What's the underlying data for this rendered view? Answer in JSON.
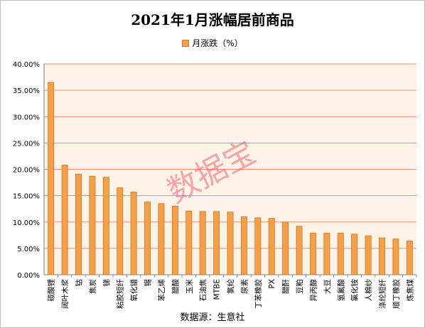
{
  "chart_data": {
    "type": "bar",
    "title": "2021年1月涨幅居前商品",
    "legend": "月涨跌（%）",
    "source": "数据源：生意社",
    "watermark": "数据宝",
    "colors": {
      "bar": "#f4a04a",
      "bar_stroke": "#c9782c",
      "plot_bg": "#fef3e6",
      "grid": "#e0704c"
    },
    "ylim": [
      0,
      40
    ],
    "ytick_labels": [
      "0.00%",
      "5.00%",
      "10.00%",
      "15.00%",
      "20.00%",
      "25.00%",
      "30.00%",
      "35.00%",
      "40.00%"
    ],
    "categories": [
      "碳酸锂",
      "阔叶木浆",
      "钴",
      "焦炭",
      "锑",
      "粘胶短纤",
      "氧化镨",
      "锡",
      "苯乙烯",
      "醋酸",
      "玉米",
      "石油焦",
      "MTBE",
      "氯纶",
      "尿素",
      "丁苯橡胶",
      "PX",
      "醋酐",
      "豆粕",
      "异丙醇",
      "大豆",
      "氢氟酸",
      "氯化铵",
      "人棉纱",
      "涤纶短纤",
      "顺丁橡胶",
      "炼焦煤"
    ],
    "values": [
      36.5,
      20.8,
      19.1,
      18.7,
      18.5,
      16.5,
      15.7,
      13.8,
      13.5,
      13.0,
      12.1,
      12.0,
      12.0,
      11.9,
      11.0,
      10.8,
      10.7,
      10.0,
      9.2,
      7.9,
      7.9,
      7.9,
      7.7,
      7.4,
      7.0,
      6.8,
      6.4
    ]
  }
}
